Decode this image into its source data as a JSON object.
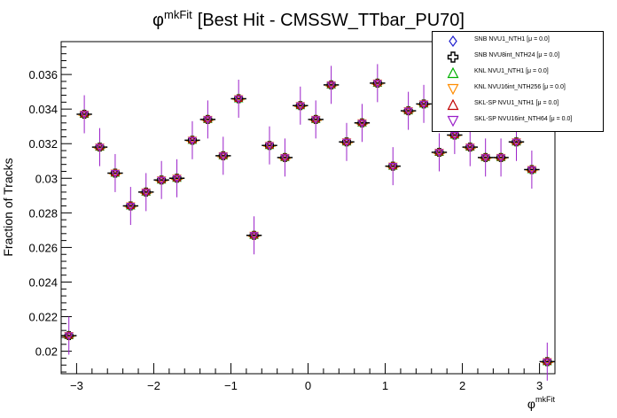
{
  "chart_data": {
    "type": "scatter",
    "title": "[Best Hit - CMSSW_TTbar_PU70]",
    "title_symbol": "φ",
    "title_superscript": "mkFit",
    "xlabel": "φ",
    "xlabel_superscript": "mkFit",
    "ylabel": "Fraction of Tracks",
    "xlim": [
      -3.2,
      3.2
    ],
    "ylim": [
      0.0187,
      0.0379
    ],
    "x_ticks": [
      -3,
      -2,
      -1,
      0,
      1,
      2,
      3
    ],
    "x_tick_labels": [
      "−3",
      "−2",
      "−1",
      "0",
      "1",
      "2",
      "3"
    ],
    "y_ticks": [
      0.02,
      0.022,
      0.024,
      0.026,
      0.028,
      0.03,
      0.032,
      0.034,
      0.036
    ],
    "y_tick_labels": [
      "0.02",
      "0.022",
      "0.024",
      "0.026",
      "0.028",
      "0.03",
      "0.032",
      "0.034",
      "0.036"
    ],
    "grid": false,
    "legend_position": "top-right",
    "x": [
      -3.1,
      -2.9,
      -2.7,
      -2.5,
      -2.3,
      -2.1,
      -1.9,
      -1.7,
      -1.5,
      -1.3,
      -1.1,
      -0.9,
      -0.7,
      -0.5,
      -0.3,
      -0.1,
      0.1,
      0.3,
      0.5,
      0.7,
      0.9,
      1.1,
      1.3,
      1.5,
      1.7,
      1.9,
      2.1,
      2.3,
      2.5,
      2.7,
      2.9,
      3.1
    ],
    "y": [
      0.0209,
      0.0337,
      0.0318,
      0.0303,
      0.0284,
      0.0292,
      0.0299,
      0.03,
      0.0322,
      0.0334,
      0.0313,
      0.0346,
      0.0267,
      0.0319,
      0.0312,
      0.0342,
      0.0334,
      0.0354,
      0.0321,
      0.0332,
      0.0355,
      0.0307,
      0.0339,
      0.0343,
      0.0315,
      0.0325,
      0.0318,
      0.0312,
      0.0312,
      0.0321,
      0.0305,
      0.0194
    ],
    "yerr": 0.0011,
    "xerr": 0.1,
    "series": [
      {
        "name": "SNB NVU1_NTH1",
        "mu": "[μ =  0.0]",
        "marker": "diamond",
        "color": "#1f1fcf"
      },
      {
        "name": "SNB NVU8int_NTH24",
        "mu": "[μ =  0.0]",
        "marker": "cross",
        "color": "#000000"
      },
      {
        "name": "KNL NVU1_NTH1",
        "mu": "[μ =  0.0]",
        "marker": "triangle-up",
        "color": "#00b000"
      },
      {
        "name": "KNL NVU16int_NTH256",
        "mu": "[μ =  0.0]",
        "marker": "triangle-down",
        "color": "#ff8c00"
      },
      {
        "name": "SKL-SP NVU1_NTH1",
        "mu": "[μ =  0.0]",
        "marker": "triangle-up",
        "color": "#c00000"
      },
      {
        "name": "SKL-SP NVU16int_NTH64",
        "mu": "[μ =  0.0]",
        "marker": "triangle-down",
        "color": "#9a1fc9"
      }
    ],
    "error_bar_color": "#9a1fc9"
  }
}
